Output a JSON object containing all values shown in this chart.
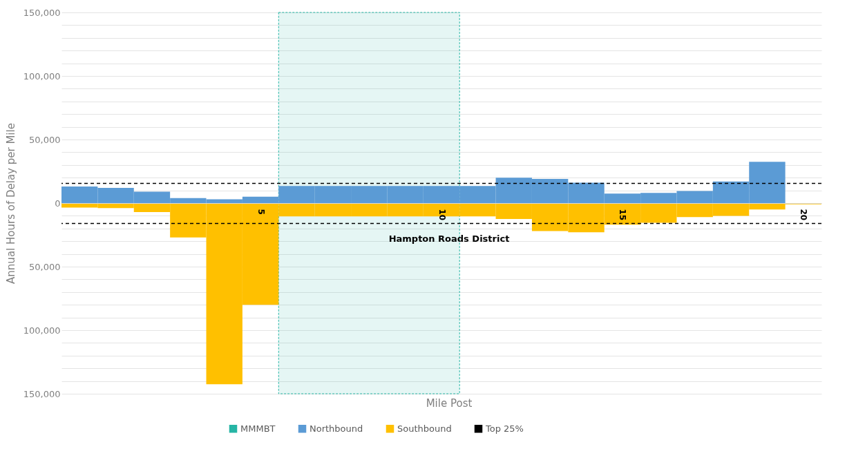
{
  "chart_data": {
    "type": "bar",
    "xlabel": "Mile Post",
    "ylabel": "Annual Hours of Delay per Mile",
    "x": [
      0,
      1,
      2,
      3,
      4,
      5,
      6,
      7,
      8,
      9,
      10,
      11,
      12,
      13,
      14,
      15,
      16,
      17,
      18,
      19,
      20
    ],
    "series": [
      {
        "name": "Northbound",
        "color": "#5b9bd5",
        "values": [
          13000,
          12000,
          9000,
          4000,
          3000,
          5000,
          13500,
          13500,
          13500,
          13500,
          13500,
          13500,
          20000,
          19000,
          16000,
          7500,
          8000,
          9500,
          17000,
          32500,
          null
        ]
      },
      {
        "name": "Southbound",
        "color": "#ffc000",
        "values": [
          -3500,
          -4000,
          -7000,
          -27000,
          -142500,
          -80000,
          -10500,
          -10500,
          -10500,
          -10500,
          -10500,
          -10500,
          -12500,
          -22000,
          -23000,
          -17000,
          -15500,
          -11000,
          -10000,
          -5000,
          -1000
        ]
      }
    ],
    "xlim": [
      -0.5,
      20.5
    ],
    "xticks": [
      5,
      10,
      15,
      20
    ],
    "ylim": [
      -150000,
      150000
    ],
    "yticks": [
      {
        "value": -150000,
        "label": "150,000"
      },
      {
        "value": -140000,
        "label": null
      },
      {
        "value": -130000,
        "label": null
      },
      {
        "value": -120000,
        "label": null
      },
      {
        "value": -110000,
        "label": null
      },
      {
        "value": -100000,
        "label": "100,000"
      },
      {
        "value": -90000,
        "label": null
      },
      {
        "value": -80000,
        "label": null
      },
      {
        "value": -70000,
        "label": null
      },
      {
        "value": -60000,
        "label": null
      },
      {
        "value": -50000,
        "label": "50,000"
      },
      {
        "value": -40000,
        "label": null
      },
      {
        "value": -30000,
        "label": null
      },
      {
        "value": -20000,
        "label": null
      },
      {
        "value": -10000,
        "label": null
      },
      0,
      {
        "value": 10000,
        "label": null
      },
      {
        "value": 20000,
        "label": null
      },
      {
        "value": 30000,
        "label": null
      },
      {
        "value": 40000,
        "label": null
      },
      {
        "value": 50000,
        "label": "50,000"
      },
      {
        "value": 60000,
        "label": null
      },
      {
        "value": 70000,
        "label": null
      },
      {
        "value": 80000,
        "label": null
      },
      {
        "value": 90000,
        "label": null
      },
      {
        "value": 100000,
        "label": "100,000"
      },
      {
        "value": 110000,
        "label": null
      },
      {
        "value": 120000,
        "label": null
      },
      {
        "value": 130000,
        "label": null
      },
      {
        "value": 140000,
        "label": null
      },
      {
        "value": 150000,
        "label": "150,000"
      }
    ],
    "bands": [
      {
        "axis": "x",
        "from": 5.5,
        "to": 10.5,
        "label": "MMMBT",
        "color": "#26b5a5"
      }
    ],
    "ref_lines": [
      {
        "axis": "y",
        "value": 15500,
        "label": "Top 25%",
        "color": "#000000",
        "line_style": "dashed"
      },
      {
        "axis": "y",
        "value": -16000,
        "label": null,
        "color": "#000000",
        "line_style": "dashed"
      }
    ],
    "annotations": [
      "Hampton Roads District"
    ],
    "stacked": true,
    "grid": "y",
    "legend": "bottom"
  }
}
